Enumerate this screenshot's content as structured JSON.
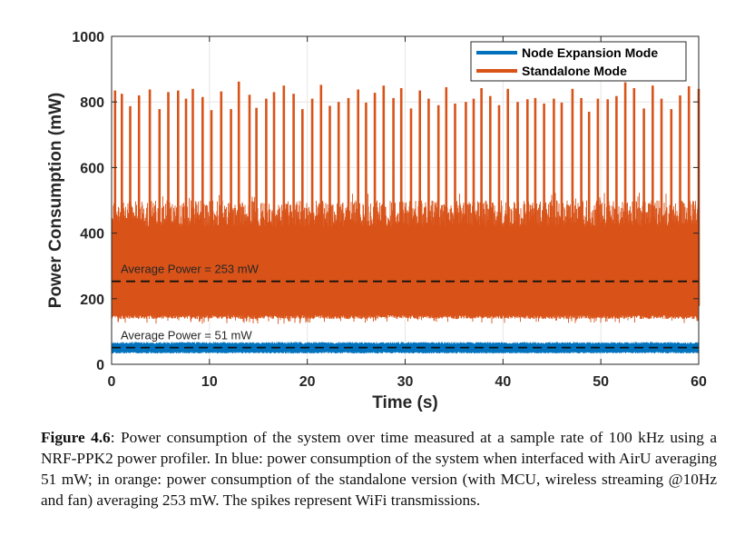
{
  "chart_data": {
    "type": "line",
    "xlabel": "Time (s)",
    "ylabel": "Power Consumption (mW)",
    "xlim": [
      0,
      60
    ],
    "ylim": [
      0,
      1000
    ],
    "xticks": [
      0,
      10,
      20,
      30,
      40,
      50,
      60
    ],
    "yticks": [
      0,
      200,
      400,
      600,
      800,
      1000
    ],
    "grid": true,
    "legend_position": "top-right",
    "series": [
      {
        "name": "Node Expansion Mode",
        "color": "#0072BD",
        "average": 51,
        "band": [
          33,
          68
        ]
      },
      {
        "name": "Standalone Mode",
        "color": "#D95319",
        "average": 253,
        "band": [
          138,
          500
        ],
        "spike_times": [
          0.35,
          1.05,
          1.9,
          2.8,
          3.9,
          4.9,
          5.8,
          6.8,
          7.6,
          8.3,
          9.3,
          10.2,
          11.2,
          12.2,
          13.0,
          14.1,
          14.8,
          15.8,
          16.6,
          17.6,
          18.6,
          19.5,
          20.5,
          21.4,
          22.3,
          23.2,
          24.2,
          25.2,
          26.0,
          26.9,
          27.8,
          28.8,
          29.6,
          30.6,
          31.5,
          32.4,
          33.4,
          34.2,
          35.1,
          36.2,
          37.0,
          37.8,
          38.7,
          39.6,
          40.5,
          41.5,
          42.5,
          43.3,
          44.2,
          45.2,
          46.0,
          47.1,
          48.0,
          48.8,
          49.7,
          50.7,
          51.6,
          52.5,
          53.4,
          54.4,
          55.3,
          56.2,
          57.2,
          58.1,
          59.0,
          60.0
        ],
        "spike_peaks": [
          835,
          825,
          787,
          820,
          838,
          778,
          830,
          835,
          810,
          840,
          815,
          775,
          832,
          778,
          862,
          822,
          782,
          810,
          830,
          850,
          825,
          778,
          810,
          852,
          788,
          800,
          812,
          838,
          798,
          828,
          850,
          812,
          842,
          780,
          835,
          810,
          790,
          845,
          795,
          800,
          810,
          842,
          818,
          790,
          840,
          800,
          808,
          812,
          795,
          810,
          798,
          840,
          812,
          770,
          810,
          808,
          818,
          860,
          842,
          780,
          850,
          810,
          778,
          820,
          848,
          840
        ]
      }
    ],
    "annotations": [
      {
        "text": "Average Power = 253 mW",
        "value": 253
      },
      {
        "text": "Average Power = 51 mW",
        "value": 51
      }
    ]
  },
  "caption": {
    "label": "Figure 4.6",
    "text": ": Power consumption of the system over time measured at a sample rate of 100 kHz using a NRF-PPK2 power profiler.  In blue: power consumption of the system when interfaced with AirU averaging 51 mW; in orange:  power consumption of the standalone version (with MCU, wireless streaming @10Hz and fan) averaging 253 mW. The spikes represent WiFi transmissions."
  }
}
